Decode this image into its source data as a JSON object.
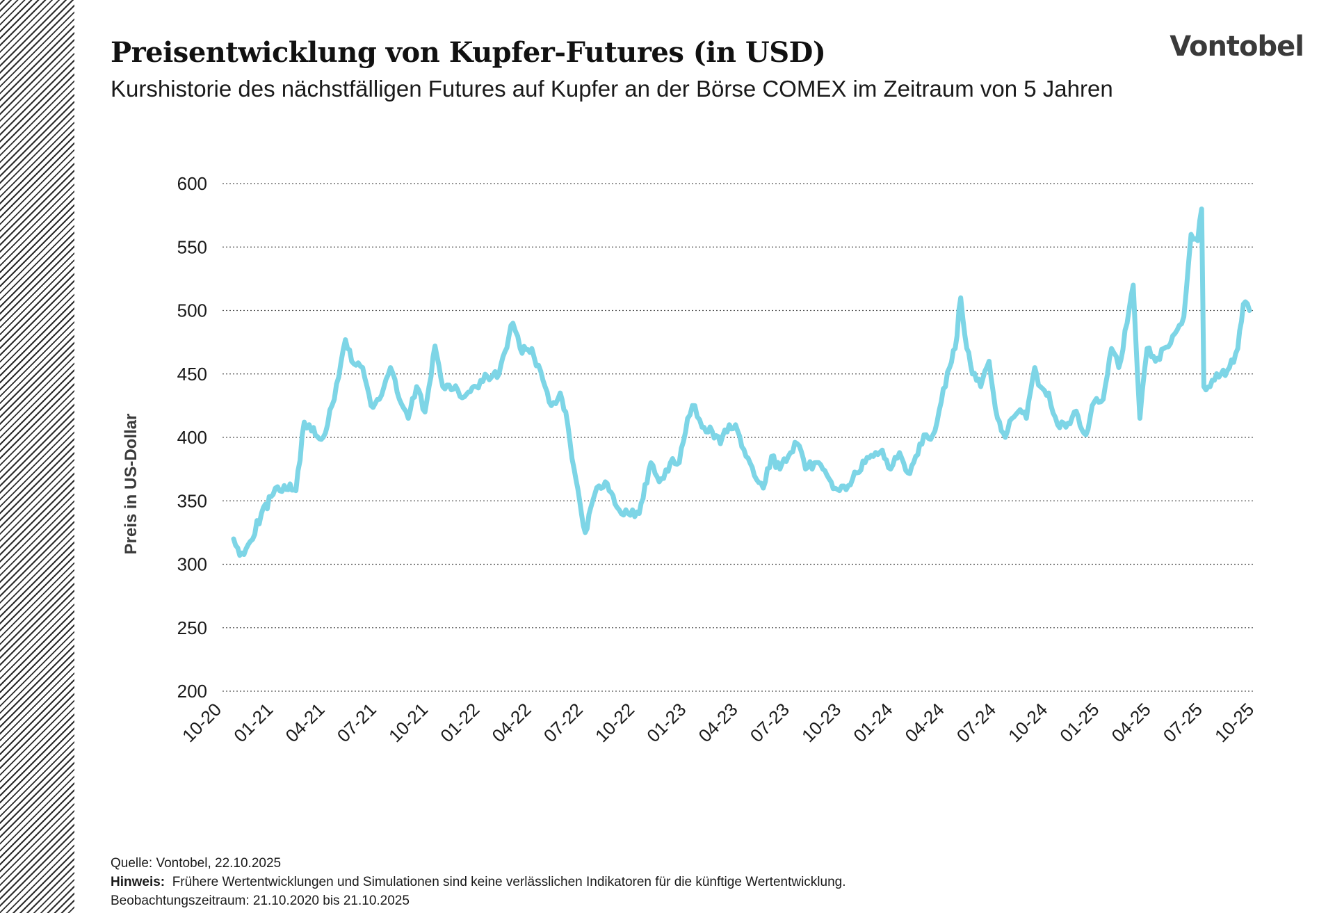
{
  "header": {
    "title": "Preisentwicklung von Kupfer-Futures (in USD)",
    "subtitle": "Kurshistorie des nächstfälligen Futures auf Kupfer an der Börse COMEX im Zeitraum von 5 Jahren",
    "logo": "Vontobel"
  },
  "footer": {
    "source": "Quelle: Vontobel, 22.10.2025",
    "note_label": "Hinweis:",
    "note_text": "Frühere Wertentwicklungen und Simulationen sind keine verlässlichen Indikatoren für die künftige Wertentwicklung.",
    "period": "Beobachtungszeitraum: 21.10.2020 bis 21.10.2025"
  },
  "chart_data": {
    "type": "line",
    "title": "Preisentwicklung von Kupfer-Futures (in USD)",
    "xlabel": "",
    "ylabel": "Preis in US-Dollar",
    "ylim": [
      200,
      600
    ],
    "yticks": [
      200,
      250,
      300,
      350,
      400,
      450,
      500,
      550,
      600
    ],
    "xticks": [
      "10-20",
      "01-21",
      "04-21",
      "07-21",
      "10-21",
      "01-22",
      "04-22",
      "07-22",
      "10-22",
      "01-23",
      "04-23",
      "07-23",
      "10-23",
      "01-24",
      "04-24",
      "07-24",
      "10-24",
      "01-25",
      "04-25",
      "07-25",
      "10-25"
    ],
    "grid": true,
    "legend": "none",
    "line_color": "#7dd5e6",
    "series": [
      {
        "values": [
          {
            "x": "2020-10-21",
            "y": 320
          },
          {
            "x": "2020-11-01",
            "y": 307
          },
          {
            "x": "2020-11-20",
            "y": 318
          },
          {
            "x": "2020-12-10",
            "y": 340
          },
          {
            "x": "2020-12-31",
            "y": 355
          },
          {
            "x": "2021-01-20",
            "y": 362
          },
          {
            "x": "2021-02-10",
            "y": 358
          },
          {
            "x": "2021-02-25",
            "y": 412
          },
          {
            "x": "2021-03-10",
            "y": 405
          },
          {
            "x": "2021-03-31",
            "y": 400
          },
          {
            "x": "2021-04-20",
            "y": 430
          },
          {
            "x": "2021-05-10",
            "y": 477
          },
          {
            "x": "2021-05-25",
            "y": 458
          },
          {
            "x": "2021-06-10",
            "y": 455
          },
          {
            "x": "2021-06-25",
            "y": 425
          },
          {
            "x": "2021-07-10",
            "y": 430
          },
          {
            "x": "2021-07-30",
            "y": 455
          },
          {
            "x": "2021-08-15",
            "y": 430
          },
          {
            "x": "2021-08-31",
            "y": 415
          },
          {
            "x": "2021-09-15",
            "y": 440
          },
          {
            "x": "2021-09-30",
            "y": 420
          },
          {
            "x": "2021-10-18",
            "y": 472
          },
          {
            "x": "2021-11-01",
            "y": 440
          },
          {
            "x": "2021-11-20",
            "y": 438
          },
          {
            "x": "2021-12-10",
            "y": 432
          },
          {
            "x": "2021-12-31",
            "y": 440
          },
          {
            "x": "2022-01-20",
            "y": 448
          },
          {
            "x": "2022-02-10",
            "y": 450
          },
          {
            "x": "2022-03-07",
            "y": 490
          },
          {
            "x": "2022-03-20",
            "y": 470
          },
          {
            "x": "2022-04-10",
            "y": 470
          },
          {
            "x": "2022-04-30",
            "y": 445
          },
          {
            "x": "2022-05-15",
            "y": 425
          },
          {
            "x": "2022-05-31",
            "y": 435
          },
          {
            "x": "2022-06-10",
            "y": 420
          },
          {
            "x": "2022-06-25",
            "y": 375
          },
          {
            "x": "2022-07-05",
            "y": 350
          },
          {
            "x": "2022-07-15",
            "y": 325
          },
          {
            "x": "2022-08-01",
            "y": 355
          },
          {
            "x": "2022-08-20",
            "y": 365
          },
          {
            "x": "2022-09-10",
            "y": 345
          },
          {
            "x": "2022-09-30",
            "y": 340
          },
          {
            "x": "2022-10-20",
            "y": 340
          },
          {
            "x": "2022-11-10",
            "y": 380
          },
          {
            "x": "2022-11-25",
            "y": 365
          },
          {
            "x": "2022-12-15",
            "y": 380
          },
          {
            "x": "2022-12-31",
            "y": 380
          },
          {
            "x": "2023-01-15",
            "y": 415
          },
          {
            "x": "2023-01-28",
            "y": 425
          },
          {
            "x": "2023-02-10",
            "y": 408
          },
          {
            "x": "2023-02-28",
            "y": 405
          },
          {
            "x": "2023-03-15",
            "y": 395
          },
          {
            "x": "2023-03-31",
            "y": 410
          },
          {
            "x": "2023-04-15",
            "y": 405
          },
          {
            "x": "2023-04-30",
            "y": 385
          },
          {
            "x": "2023-05-15",
            "y": 370
          },
          {
            "x": "2023-05-31",
            "y": 360
          },
          {
            "x": "2023-06-15",
            "y": 385
          },
          {
            "x": "2023-06-30",
            "y": 375
          },
          {
            "x": "2023-07-15",
            "y": 385
          },
          {
            "x": "2023-07-31",
            "y": 395
          },
          {
            "x": "2023-08-15",
            "y": 375
          },
          {
            "x": "2023-08-31",
            "y": 380
          },
          {
            "x": "2023-09-15",
            "y": 375
          },
          {
            "x": "2023-09-30",
            "y": 365
          },
          {
            "x": "2023-10-15",
            "y": 358
          },
          {
            "x": "2023-10-31",
            "y": 362
          },
          {
            "x": "2023-11-15",
            "y": 372
          },
          {
            "x": "2023-11-30",
            "y": 380
          },
          {
            "x": "2023-12-15",
            "y": 385
          },
          {
            "x": "2023-12-31",
            "y": 390
          },
          {
            "x": "2024-01-15",
            "y": 375
          },
          {
            "x": "2024-01-31",
            "y": 388
          },
          {
            "x": "2024-02-15",
            "y": 372
          },
          {
            "x": "2024-02-29",
            "y": 385
          },
          {
            "x": "2024-03-15",
            "y": 402
          },
          {
            "x": "2024-03-31",
            "y": 402
          },
          {
            "x": "2024-04-15",
            "y": 428
          },
          {
            "x": "2024-04-30",
            "y": 455
          },
          {
            "x": "2024-05-10",
            "y": 470
          },
          {
            "x": "2024-05-20",
            "y": 510
          },
          {
            "x": "2024-05-31",
            "y": 470
          },
          {
            "x": "2024-06-10",
            "y": 450
          },
          {
            "x": "2024-06-25",
            "y": 440
          },
          {
            "x": "2024-07-10",
            "y": 460
          },
          {
            "x": "2024-07-25",
            "y": 415
          },
          {
            "x": "2024-08-08",
            "y": 400
          },
          {
            "x": "2024-08-20",
            "y": 415
          },
          {
            "x": "2024-08-31",
            "y": 420
          },
          {
            "x": "2024-09-15",
            "y": 415
          },
          {
            "x": "2024-09-30",
            "y": 455
          },
          {
            "x": "2024-10-10",
            "y": 440
          },
          {
            "x": "2024-10-25",
            "y": 435
          },
          {
            "x": "2024-11-10",
            "y": 410
          },
          {
            "x": "2024-11-25",
            "y": 408
          },
          {
            "x": "2024-12-10",
            "y": 420
          },
          {
            "x": "2024-12-31",
            "y": 402
          },
          {
            "x": "2025-01-15",
            "y": 428
          },
          {
            "x": "2025-01-31",
            "y": 430
          },
          {
            "x": "2025-02-15",
            "y": 470
          },
          {
            "x": "2025-02-28",
            "y": 455
          },
          {
            "x": "2025-03-15",
            "y": 490
          },
          {
            "x": "2025-03-26",
            "y": 520
          },
          {
            "x": "2025-04-07",
            "y": 415
          },
          {
            "x": "2025-04-20",
            "y": 470
          },
          {
            "x": "2025-05-05",
            "y": 460
          },
          {
            "x": "2025-05-20",
            "y": 470
          },
          {
            "x": "2025-06-05",
            "y": 480
          },
          {
            "x": "2025-06-25",
            "y": 495
          },
          {
            "x": "2025-07-08",
            "y": 560
          },
          {
            "x": "2025-07-20",
            "y": 555
          },
          {
            "x": "2025-07-27",
            "y": 580
          },
          {
            "x": "2025-07-31",
            "y": 440
          },
          {
            "x": "2025-08-15",
            "y": 445
          },
          {
            "x": "2025-08-31",
            "y": 450
          },
          {
            "x": "2025-09-15",
            "y": 455
          },
          {
            "x": "2025-09-30",
            "y": 470
          },
          {
            "x": "2025-10-10",
            "y": 505
          },
          {
            "x": "2025-10-21",
            "y": 500
          }
        ]
      }
    ]
  }
}
